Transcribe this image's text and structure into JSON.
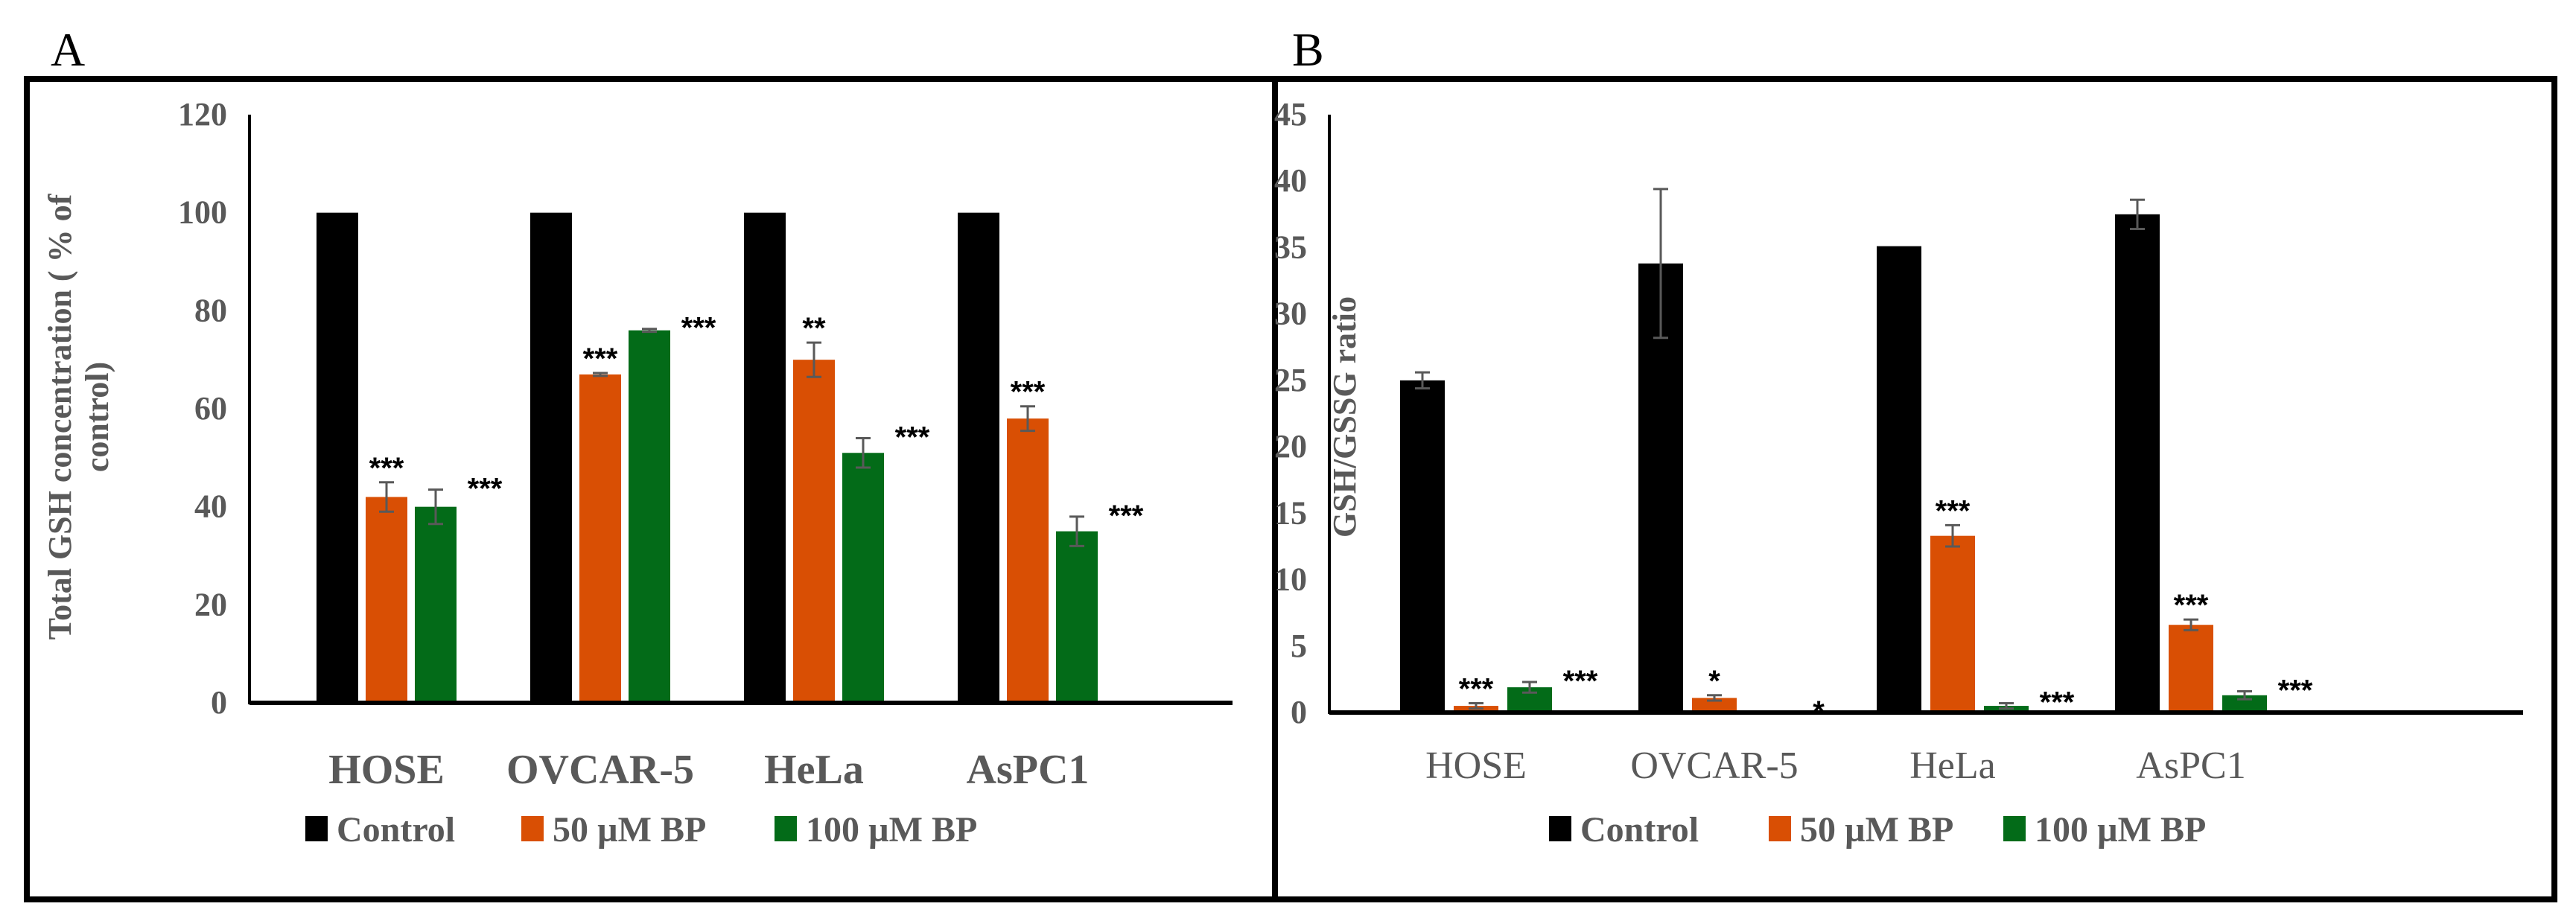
{
  "chart_data": [
    {
      "panel": "A",
      "type": "bar",
      "title": "",
      "xlabel": "",
      "ylabel": "Total GSH concentration ( % of control)",
      "ylabel_lines": [
        "Total GSH concentration ( % of",
        "control)"
      ],
      "ylim": [
        0,
        120
      ],
      "yticks": [
        0,
        20,
        40,
        60,
        80,
        100,
        120
      ],
      "categories": [
        "HOSE",
        "OVCAR-5",
        "HeLa",
        "AsPC1"
      ],
      "legend_position": "bottom",
      "series": [
        {
          "name": "Control",
          "color": "#000000",
          "values": [
            100,
            100,
            100,
            100
          ],
          "errors": [
            0,
            0,
            0,
            0
          ],
          "significance": [
            "",
            "",
            "",
            ""
          ]
        },
        {
          "name": "50 µM BP",
          "color": "#D94F04",
          "values": [
            42,
            67,
            70,
            58
          ],
          "errors": [
            3,
            0.3,
            3.5,
            2.5
          ],
          "significance": [
            "***",
            "***",
            "**",
            "***"
          ]
        },
        {
          "name": "100 µM BP",
          "color": "#036B18",
          "values": [
            40,
            76,
            51,
            35
          ],
          "errors": [
            3.5,
            0.3,
            3,
            3
          ],
          "significance": [
            "***",
            "***",
            "***",
            "***"
          ]
        }
      ]
    },
    {
      "panel": "B",
      "type": "bar",
      "title": "",
      "xlabel": "",
      "ylabel": "GSH/GSSG ratio",
      "ylabel_lines": [
        "GSH/GSSG ratio"
      ],
      "ylim": [
        0,
        45
      ],
      "yticks": [
        0,
        5,
        10,
        15,
        20,
        25,
        30,
        35,
        40,
        45
      ],
      "categories": [
        "HOSE",
        "OVCAR-5",
        "HeLa",
        "AsPC1"
      ],
      "legend_position": "bottom",
      "series": [
        {
          "name": "Control",
          "color": "#000000",
          "values": [
            25,
            33.8,
            35.1,
            37.5
          ],
          "errors": [
            0.6,
            5.6,
            0,
            1.1
          ],
          "significance": [
            "",
            "",
            "",
            ""
          ]
        },
        {
          "name": "50 µM BP",
          "color": "#D94F04",
          "values": [
            0.5,
            1.1,
            13.3,
            6.6
          ],
          "errors": [
            0.2,
            0.2,
            0.8,
            0.4
          ],
          "significance": [
            "***",
            "*",
            "***",
            "***"
          ]
        },
        {
          "name": "100 µM BP",
          "color": "#036B18",
          "values": [
            1.9,
            0,
            0.5,
            1.3
          ],
          "errors": [
            0.4,
            0,
            0.2,
            0.3
          ],
          "significance": [
            "***",
            "*",
            "***",
            "***"
          ]
        }
      ]
    }
  ]
}
